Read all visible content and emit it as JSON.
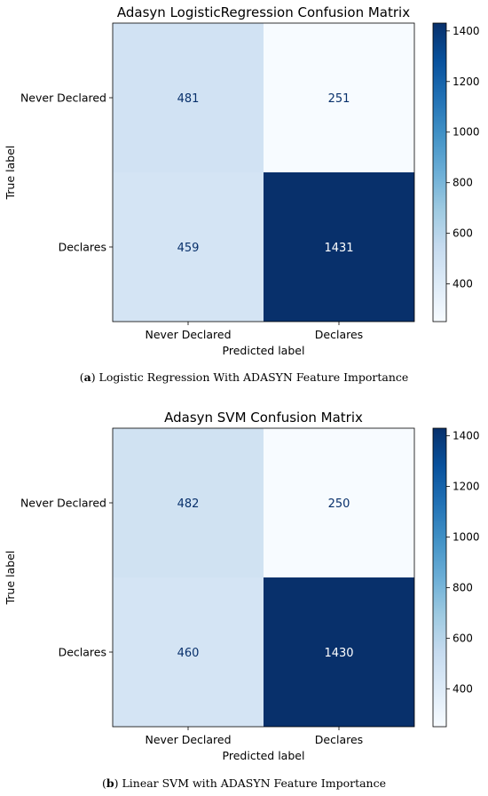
{
  "chart_data": [
    {
      "type": "heatmap",
      "title": "Adasyn LogisticRegression Confusion Matrix",
      "xlabel": "Predicted label",
      "ylabel": "True label",
      "x_categories": [
        "Never Declared",
        "Declares"
      ],
      "y_categories": [
        "Never Declared",
        "Declares"
      ],
      "values": [
        [
          481,
          251
        ],
        [
          459,
          1431
        ]
      ],
      "colormap": "Blues",
      "colorbar_range": [
        251,
        1431
      ],
      "colorbar_ticks": [
        400,
        600,
        800,
        1000,
        1200,
        1400
      ],
      "caption_letter": "a",
      "caption_text": "Logistic Regression With ADASYN Feature Importance"
    },
    {
      "type": "heatmap",
      "title": "Adasyn SVM Confusion Matrix",
      "xlabel": "Predicted label",
      "ylabel": "True label",
      "x_categories": [
        "Never Declared",
        "Declares"
      ],
      "y_categories": [
        "Never Declared",
        "Declares"
      ],
      "values": [
        [
          482,
          250
        ],
        [
          460,
          1430
        ]
      ],
      "colormap": "Blues",
      "colorbar_range": [
        250,
        1430
      ],
      "colorbar_ticks": [
        400,
        600,
        800,
        1000,
        1200,
        1400
      ],
      "caption_letter": "b",
      "caption_text": "Linear SVM with ADASYN Feature Importance"
    }
  ]
}
